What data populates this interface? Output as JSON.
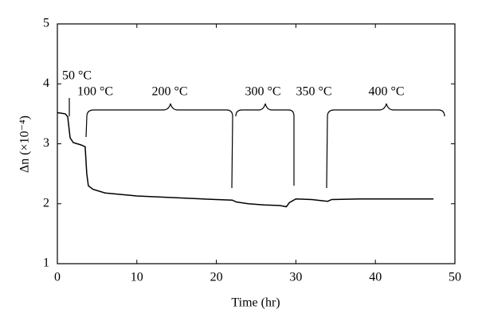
{
  "chart_data": {
    "type": "line",
    "xlabel": "Time (hr)",
    "ylabel": "Δn (×10⁻⁴)",
    "xlim": [
      0,
      50
    ],
    "xticks": [
      0,
      10,
      20,
      30,
      40,
      50
    ],
    "ylim": [
      1,
      5
    ],
    "yticks": [
      1,
      2,
      3,
      4,
      5
    ],
    "color": "#000000",
    "x": [
      0,
      1,
      1.3,
      1.6,
      2,
      3,
      3.5,
      3.7,
      3.9,
      4.5,
      6,
      10,
      15,
      20,
      22,
      22.5,
      24,
      26,
      28,
      28.8,
      29.2,
      30,
      32,
      34,
      34.5,
      38,
      42,
      47.3
    ],
    "values": [
      3.52,
      3.5,
      3.45,
      3.1,
      3.02,
      2.98,
      2.95,
      2.5,
      2.3,
      2.24,
      2.18,
      2.13,
      2.1,
      2.07,
      2.06,
      2.03,
      2.0,
      1.98,
      1.97,
      1.95,
      2.02,
      2.08,
      2.07,
      2.04,
      2.07,
      2.08,
      2.08,
      2.08
    ],
    "annotations": [
      "50 °C",
      "100 °C",
      "200 °C",
      "300 °C",
      "350 °C",
      "400 °C"
    ]
  }
}
